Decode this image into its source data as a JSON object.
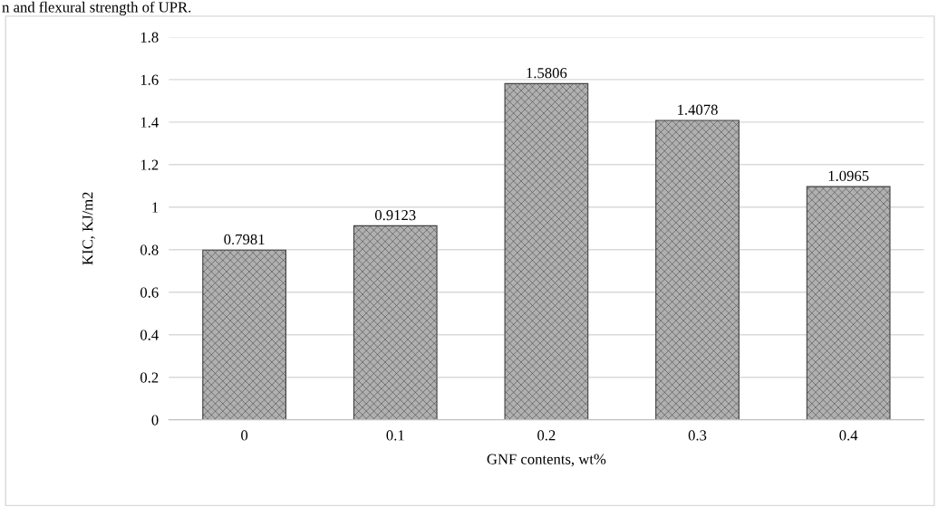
{
  "chart_data": {
    "type": "bar",
    "xlabel": "GNF contents, wt%",
    "ylabel": "KIC, KJ/m2",
    "annotations": [
      "n and flexural strength of UPR."
    ],
    "categories": [
      "0",
      "0.1",
      "0.2",
      "0.3",
      "0.4"
    ],
    "values": [
      0.7981,
      0.9123,
      1.5806,
      1.4078,
      1.0965
    ],
    "color": "#404040",
    "data_labels": true,
    "ylim": [
      0,
      1.8
    ],
    "yticks": [
      {
        "value": 0,
        "label": "0"
      },
      0.2,
      0.4,
      0.6,
      0.8,
      {
        "value": 1,
        "label": "1"
      },
      1.2,
      1.4,
      1.6,
      1.8
    ],
    "grid": "y"
  }
}
